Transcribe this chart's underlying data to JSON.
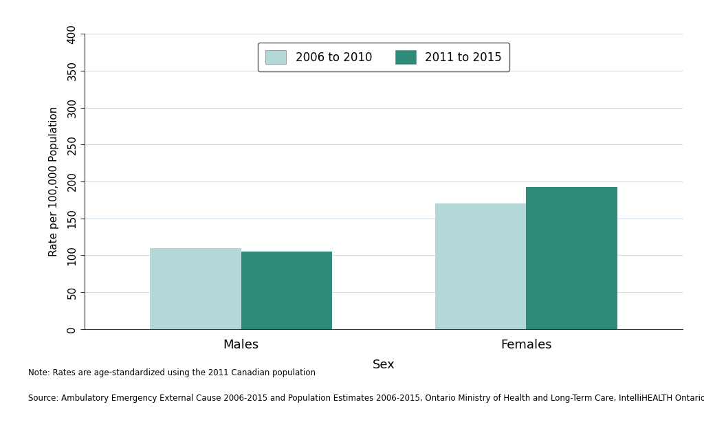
{
  "categories": [
    "Males",
    "Females"
  ],
  "series": {
    "2006 to 2010": [
      110,
      170
    ],
    "2011 to 2015": [
      105,
      193
    ]
  },
  "colors": {
    "2006 to 2010": "#b2d8d8",
    "2011 to 2015": "#2e8b7a"
  },
  "ylabel": "Rate per 100,000 Population",
  "xlabel": "Sex",
  "ylim": [
    0,
    400
  ],
  "yticks": [
    0,
    50,
    100,
    150,
    200,
    250,
    300,
    350,
    400
  ],
  "legend_labels": [
    "2006 to 2010",
    "2011 to 2015"
  ],
  "note": "Note: Rates are age-standardized using the 2011 Canadian population",
  "source": "Source: Ambulatory Emergency External Cause 2006-2015 and Population Estimates 2006-2015, Ontario Ministry of Health and Long-Term Care, IntelliHEALTH Ontario",
  "background_color": "#ffffff",
  "grid_color": "#d0dde8",
  "bar_width": 0.32,
  "figsize": [
    10.24,
    6.14
  ],
  "dpi": 100
}
